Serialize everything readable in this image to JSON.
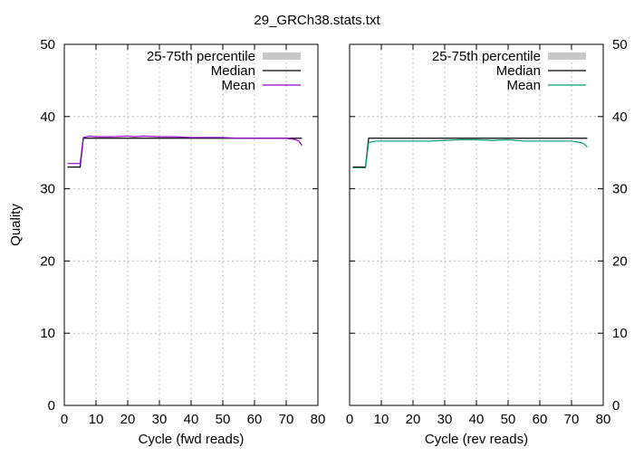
{
  "title": "29_GRCh38.stats.txt",
  "chart_data": [
    {
      "type": "line",
      "xlabel": "Cycle (fwd reads)",
      "ylabel": "Quality",
      "xlim": [
        0,
        80
      ],
      "ylim": [
        0,
        50
      ],
      "xticks": [
        0,
        10,
        20,
        30,
        40,
        50,
        60,
        70,
        80
      ],
      "yticks": [
        0,
        10,
        20,
        30,
        40,
        50
      ],
      "grid": true,
      "legend_position": "top-right",
      "series": [
        {
          "name": "25-75th percentile",
          "color": "#c8c8c8",
          "points": []
        },
        {
          "name": "Median",
          "color": "#000000",
          "points": [
            [
              1,
              33
            ],
            [
              5,
              33
            ],
            [
              6,
              37
            ],
            [
              75,
              37
            ]
          ]
        },
        {
          "name": "Mean",
          "color": "#9400d3",
          "points": [
            [
              1,
              33.5
            ],
            [
              5,
              33.5
            ],
            [
              6,
              37.1
            ],
            [
              8,
              37.3
            ],
            [
              10,
              37.2
            ],
            [
              15,
              37.2
            ],
            [
              20,
              37.3
            ],
            [
              22,
              37.2
            ],
            [
              25,
              37.3
            ],
            [
              30,
              37.2
            ],
            [
              35,
              37.2
            ],
            [
              40,
              37.1
            ],
            [
              45,
              37.1
            ],
            [
              50,
              37.1
            ],
            [
              55,
              37.0
            ],
            [
              60,
              37.0
            ],
            [
              65,
              37.0
            ],
            [
              70,
              37.0
            ],
            [
              73,
              36.8
            ],
            [
              74,
              36.6
            ],
            [
              75,
              36.0
            ]
          ]
        }
      ]
    },
    {
      "type": "line",
      "xlabel": "Cycle (rev reads)",
      "ylabel": "",
      "xlim": [
        0,
        80
      ],
      "ylim": [
        0,
        50
      ],
      "xticks": [
        0,
        10,
        20,
        30,
        40,
        50,
        60,
        70,
        80
      ],
      "yticks": [
        0,
        10,
        20,
        30,
        40,
        50
      ],
      "grid": true,
      "legend_position": "top-right",
      "series": [
        {
          "name": "25-75th percentile",
          "color": "#c8c8c8",
          "points": []
        },
        {
          "name": "Median",
          "color": "#000000",
          "points": [
            [
              1,
              33
            ],
            [
              5,
              33
            ],
            [
              6,
              37
            ],
            [
              75,
              37
            ]
          ]
        },
        {
          "name": "Mean",
          "color": "#009e73",
          "points": [
            [
              1,
              32.9
            ],
            [
              5,
              32.9
            ],
            [
              6,
              36.4
            ],
            [
              8,
              36.6
            ],
            [
              10,
              36.6
            ],
            [
              15,
              36.6
            ],
            [
              20,
              36.6
            ],
            [
              25,
              36.6
            ],
            [
              30,
              36.7
            ],
            [
              35,
              36.8
            ],
            [
              40,
              36.8
            ],
            [
              45,
              36.7
            ],
            [
              50,
              36.8
            ],
            [
              55,
              36.6
            ],
            [
              60,
              36.6
            ],
            [
              65,
              36.6
            ],
            [
              70,
              36.6
            ],
            [
              73,
              36.4
            ],
            [
              74,
              36.2
            ],
            [
              75,
              35.8
            ]
          ]
        }
      ]
    }
  ]
}
